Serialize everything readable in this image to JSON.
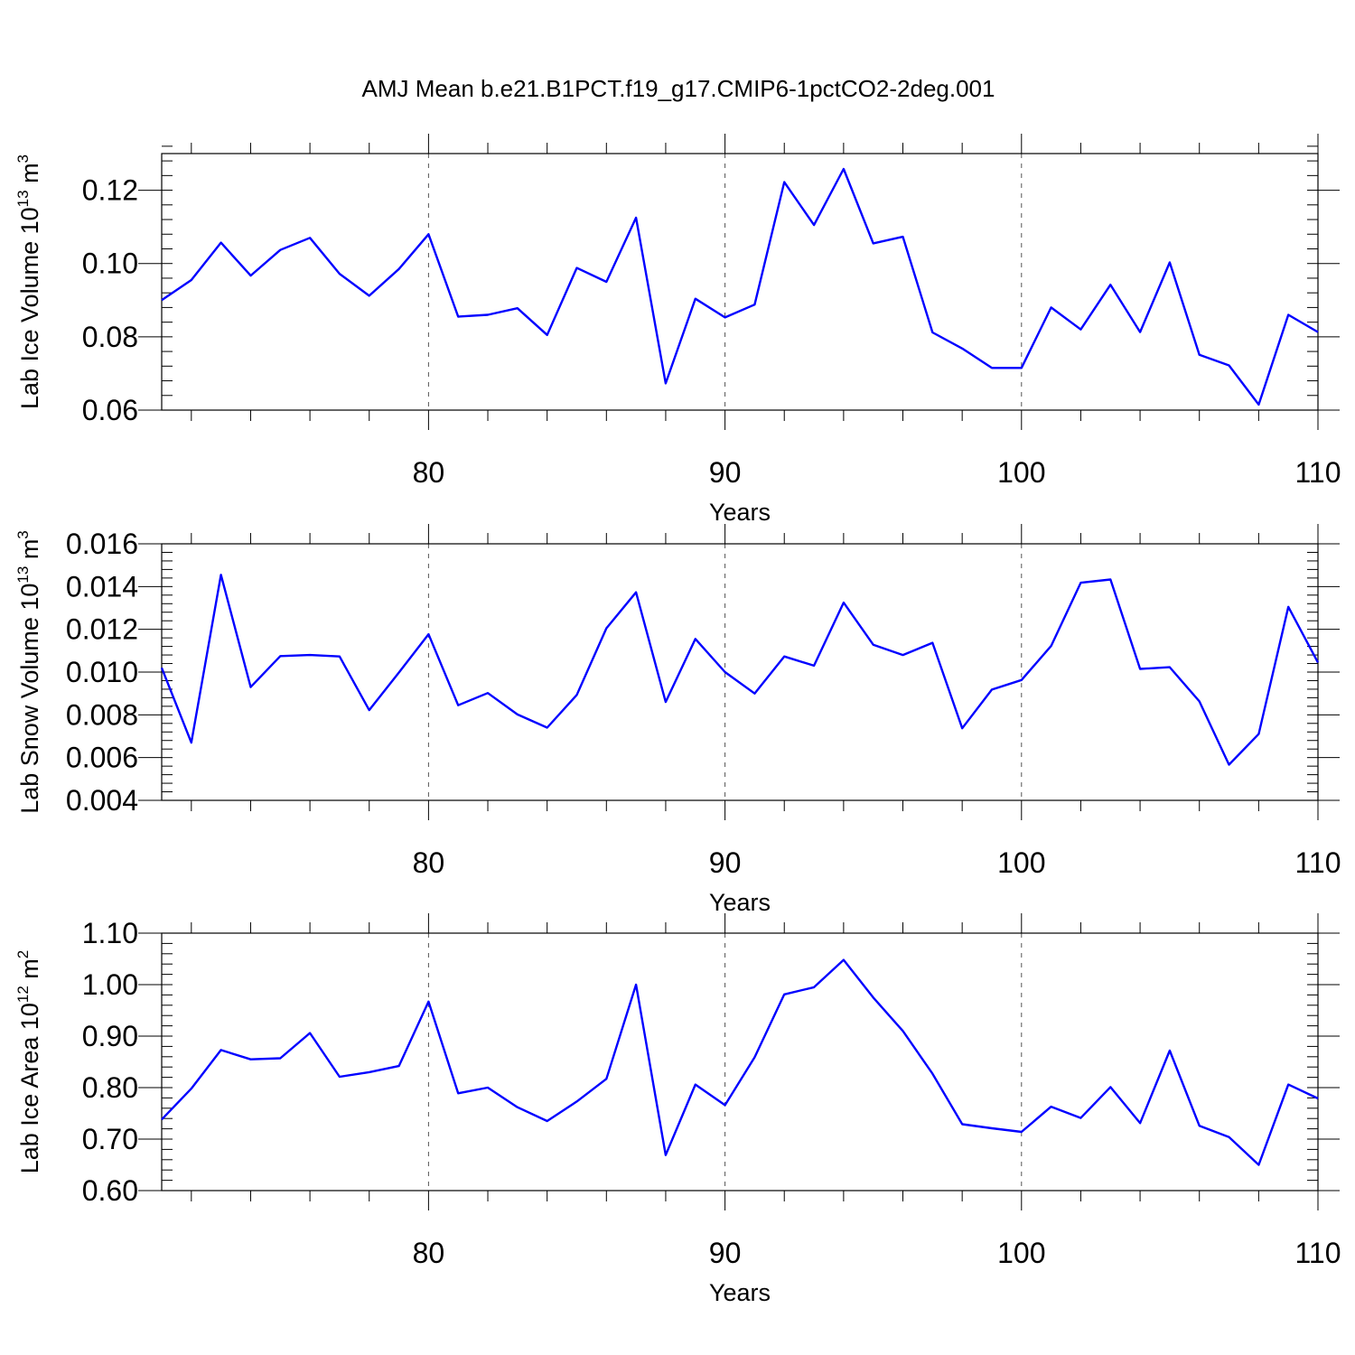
{
  "figure_title": "AMJ Mean b.e21.B1PCT.f19_g17.CMIP6-1pctCO2-2deg.001",
  "colors": {
    "line": "#0000ff",
    "axes": "#000000",
    "grid": "#555555"
  },
  "chart_data": [
    {
      "type": "line",
      "xlabel": "Years",
      "ylabel": "Lab Ice Volume 10",
      "ylabel_exp": "13",
      "ylabel_unit": " m",
      "ylabel_unit_exp": "3",
      "xlim": [
        71,
        110
      ],
      "ylim": [
        0.06,
        0.13
      ],
      "x_ticks": [
        80,
        90,
        100,
        110
      ],
      "y_ticks": [
        0.06,
        0.08,
        0.1,
        0.12
      ],
      "y_tick_labels": [
        "0.06",
        "0.08",
        "0.10",
        "0.12"
      ],
      "y_minor_step": 0.004,
      "grid_x": [
        80,
        90,
        100
      ],
      "series": [
        {
          "name": "Lab Ice Volume",
          "x": [
            71,
            72,
            73,
            74,
            75,
            76,
            77,
            78,
            79,
            80,
            81,
            82,
            83,
            84,
            85,
            86,
            87,
            88,
            89,
            90,
            91,
            92,
            93,
            94,
            95,
            96,
            97,
            98,
            99,
            100,
            101,
            102,
            103,
            104,
            105,
            106,
            107,
            108,
            109,
            110
          ],
          "values": [
            0.09,
            0.0955,
            0.1057,
            0.0967,
            0.1037,
            0.107,
            0.0972,
            0.0912,
            0.0985,
            0.108,
            0.0855,
            0.086,
            0.0878,
            0.0805,
            0.0988,
            0.095,
            0.1125,
            0.0673,
            0.0904,
            0.0853,
            0.0888,
            0.1222,
            0.1105,
            0.1258,
            0.1055,
            0.1073,
            0.0812,
            0.0768,
            0.0715,
            0.0715,
            0.088,
            0.082,
            0.0942,
            0.0813,
            0.1003,
            0.0751,
            0.0722,
            0.0615,
            0.086,
            0.0813
          ]
        }
      ]
    },
    {
      "type": "line",
      "xlabel": "Years",
      "ylabel": "Lab Snow Volume 10",
      "ylabel_exp": "13",
      "ylabel_unit": " m",
      "ylabel_unit_exp": "3",
      "xlim": [
        71,
        110
      ],
      "ylim": [
        0.004,
        0.016
      ],
      "x_ticks": [
        80,
        90,
        100,
        110
      ],
      "y_ticks": [
        0.004,
        0.006,
        0.008,
        0.01,
        0.012,
        0.014,
        0.016
      ],
      "y_tick_labels": [
        "0.004",
        "0.006",
        "0.008",
        "0.010",
        "0.012",
        "0.014",
        "0.016"
      ],
      "y_minor_step": 0.0004,
      "grid_x": [
        80,
        90,
        100
      ],
      "series": [
        {
          "name": "Lab Snow Volume",
          "x": [
            71,
            72,
            73,
            74,
            75,
            76,
            77,
            78,
            79,
            80,
            81,
            82,
            83,
            84,
            85,
            86,
            87,
            88,
            89,
            90,
            91,
            92,
            93,
            94,
            95,
            96,
            97,
            98,
            99,
            100,
            101,
            102,
            103,
            104,
            105,
            106,
            107,
            108,
            109,
            110
          ],
          "values": [
            0.0102,
            0.0067,
            0.01455,
            0.0093,
            0.01075,
            0.0108,
            0.01073,
            0.00822,
            0.00998,
            0.01177,
            0.00845,
            0.00902,
            0.00802,
            0.0074,
            0.00893,
            0.01205,
            0.01373,
            0.0086,
            0.01155,
            0.01,
            0.009,
            0.01073,
            0.0103,
            0.01325,
            0.01128,
            0.0108,
            0.01137,
            0.00737,
            0.00918,
            0.00963,
            0.01122,
            0.01418,
            0.01433,
            0.01015,
            0.01023,
            0.00863,
            0.00567,
            0.0071,
            0.01305,
            0.01045
          ]
        }
      ]
    },
    {
      "type": "line",
      "xlabel": "Years",
      "ylabel": "Lab Ice Area 10",
      "ylabel_exp": "12",
      "ylabel_unit": " m",
      "ylabel_unit_exp": "2",
      "xlim": [
        71,
        110
      ],
      "ylim": [
        0.6,
        1.1
      ],
      "x_ticks": [
        80,
        90,
        100,
        110
      ],
      "y_ticks": [
        0.6,
        0.7,
        0.8,
        0.9,
        1.0,
        1.1
      ],
      "y_tick_labels": [
        "0.60",
        "0.70",
        "0.80",
        "0.90",
        "1.00",
        "1.10"
      ],
      "y_minor_step": 0.02,
      "grid_x": [
        80,
        90,
        100
      ],
      "series": [
        {
          "name": "Lab Ice Area",
          "x": [
            71,
            72,
            73,
            74,
            75,
            76,
            77,
            78,
            79,
            80,
            81,
            82,
            83,
            84,
            85,
            86,
            87,
            88,
            89,
            90,
            91,
            92,
            93,
            94,
            95,
            96,
            97,
            98,
            99,
            100,
            101,
            102,
            103,
            104,
            105,
            106,
            107,
            108,
            109,
            110
          ],
          "values": [
            0.738,
            0.798,
            0.873,
            0.855,
            0.857,
            0.906,
            0.821,
            0.83,
            0.842,
            0.967,
            0.789,
            0.8,
            0.762,
            0.735,
            0.773,
            0.817,
            1.0,
            0.669,
            0.806,
            0.766,
            0.859,
            0.981,
            0.995,
            1.048,
            0.975,
            0.91,
            0.827,
            0.729,
            0.721,
            0.714,
            0.763,
            0.741,
            0.801,
            0.731,
            0.872,
            0.726,
            0.704,
            0.65,
            0.806,
            0.779
          ]
        }
      ]
    }
  ]
}
